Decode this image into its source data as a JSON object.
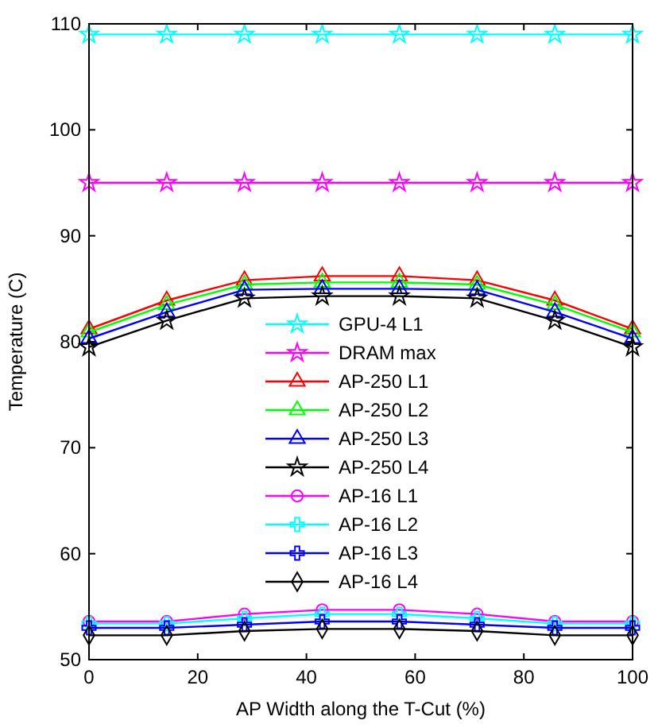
{
  "chart_data": {
    "type": "line",
    "xlabel": "AP Width along the T-Cut (%)",
    "ylabel": "Temperature (C)",
    "x": [
      0,
      14.3,
      28.6,
      42.9,
      57.1,
      71.4,
      85.7,
      100
    ],
    "xlim": [
      0,
      100
    ],
    "xticks": [
      0,
      20,
      40,
      60,
      80,
      100
    ],
    "ylim": [
      50,
      110
    ],
    "yticks": [
      50,
      60,
      70,
      80,
      90,
      100,
      110
    ],
    "grid": false,
    "legend": "center",
    "series": [
      {
        "name": "GPU-4 L1",
        "color": "#00ffff",
        "marker": "star",
        "values": [
          109,
          109,
          109,
          109,
          109,
          109,
          109,
          109
        ]
      },
      {
        "name": "DRAM max",
        "color": "#ff00ff",
        "marker": "star",
        "values": [
          95,
          95,
          95,
          95,
          95,
          95,
          95,
          95
        ]
      },
      {
        "name": "AP-250 L1",
        "color": "#ff0000",
        "marker": "triangle",
        "values": [
          81.2,
          83.9,
          85.8,
          86.2,
          86.2,
          85.8,
          83.9,
          81.2
        ]
      },
      {
        "name": "AP-250 L2",
        "color": "#00ff00",
        "marker": "triangle",
        "values": [
          80.9,
          83.5,
          85.4,
          85.6,
          85.6,
          85.4,
          83.5,
          80.9
        ]
      },
      {
        "name": "AP-250 L3",
        "color": "#0000ff",
        "marker": "triangle",
        "values": [
          80.3,
          82.8,
          84.9,
          85.0,
          85.0,
          84.9,
          82.8,
          80.3
        ]
      },
      {
        "name": "AP-250 L4",
        "color": "#000000",
        "marker": "star",
        "values": [
          79.5,
          82.0,
          84.1,
          84.3,
          84.3,
          84.1,
          82.0,
          79.5
        ]
      },
      {
        "name": "AP-16 L1",
        "color": "#ff00ff",
        "marker": "circle",
        "values": [
          53.6,
          53.6,
          54.3,
          54.7,
          54.7,
          54.3,
          53.6,
          53.6
        ]
      },
      {
        "name": "AP-16 L2",
        "color": "#00ffff",
        "marker": "cross",
        "values": [
          53.4,
          53.4,
          53.9,
          54.3,
          54.3,
          53.9,
          53.4,
          53.4
        ]
      },
      {
        "name": "AP-16 L3",
        "color": "#0000ff",
        "marker": "cross",
        "values": [
          53.0,
          53.0,
          53.3,
          53.6,
          53.6,
          53.3,
          53.0,
          53.0
        ]
      },
      {
        "name": "AP-16 L4",
        "color": "#000000",
        "marker": "diamond",
        "values": [
          52.3,
          52.3,
          52.7,
          52.9,
          52.9,
          52.7,
          52.3,
          52.3
        ]
      }
    ]
  }
}
